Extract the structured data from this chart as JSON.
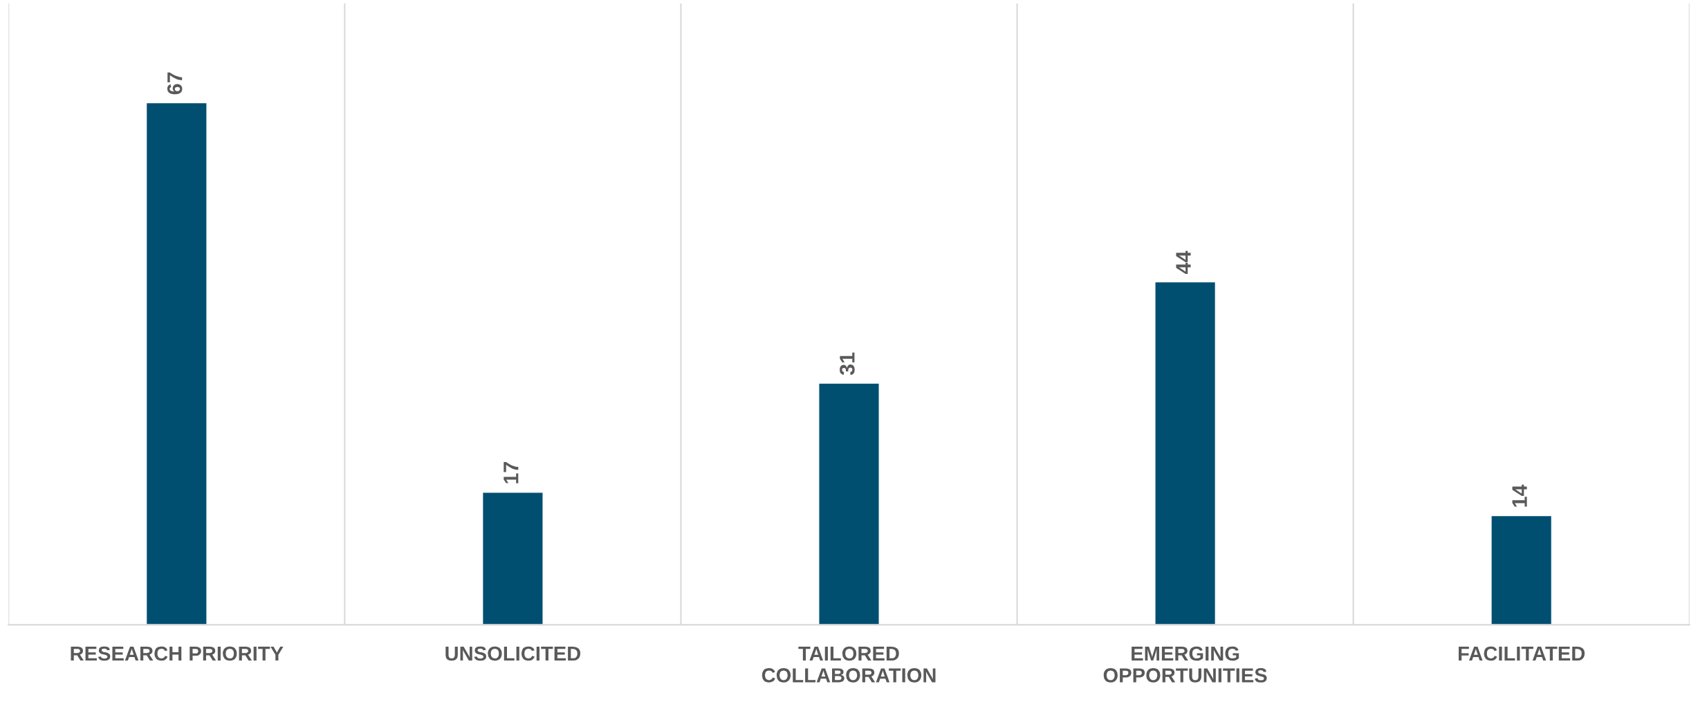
{
  "chart_data": {
    "type": "bar",
    "categories": [
      "RESEARCH PRIORITY",
      "UNSOLICITED",
      "TAILORED\nCOLLABORATION",
      "EMERGING\nOPPORTUNITIES",
      "FACILITATED"
    ],
    "values": [
      67,
      17,
      31,
      44,
      14
    ],
    "color": "#004f71",
    "data_labels": true,
    "grid": "x",
    "tick_labels": "x"
  }
}
